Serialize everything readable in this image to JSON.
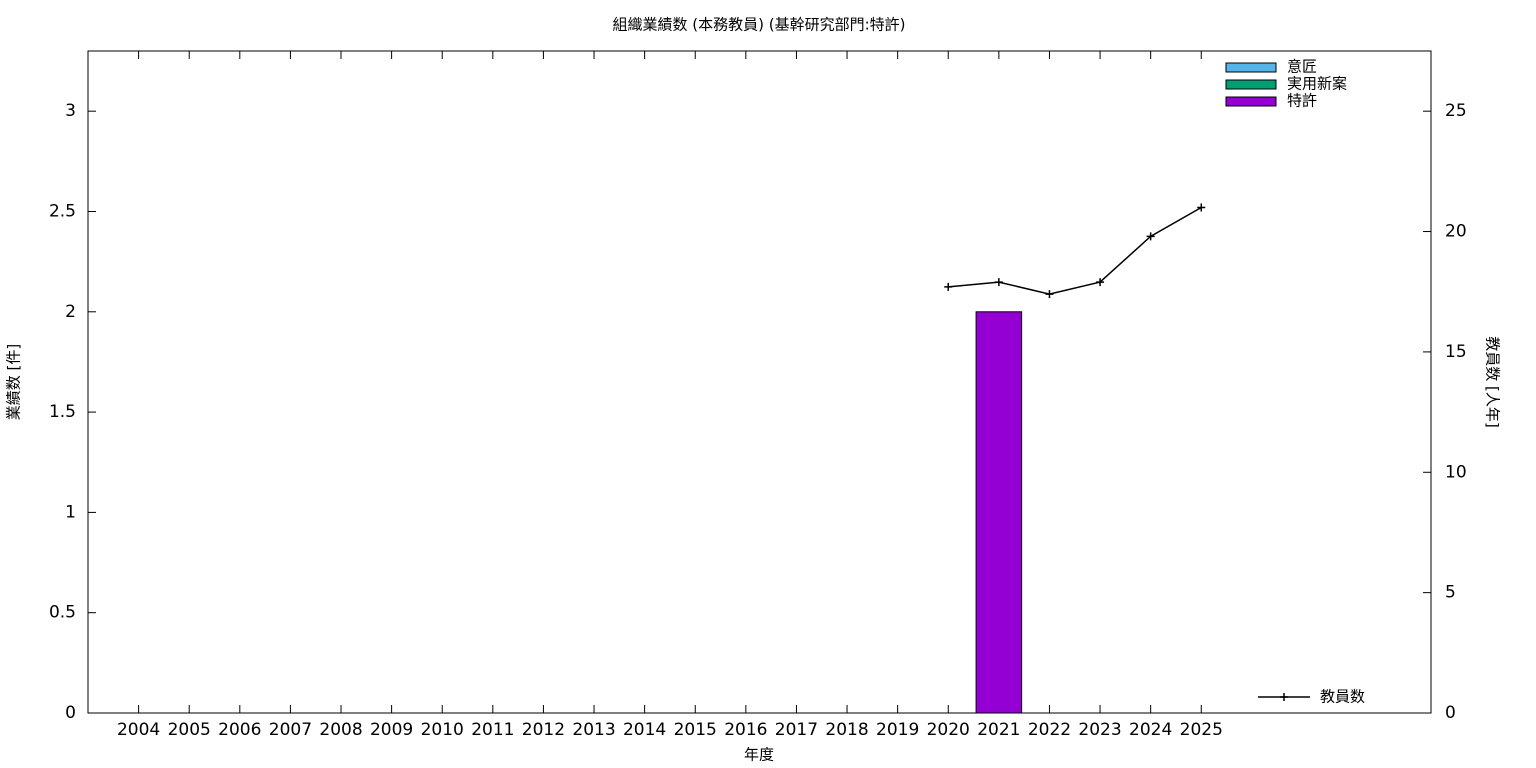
{
  "chart_data": {
    "type": "bar",
    "title": "組織業績数 (本務教員) (基幹研究部門:特許)",
    "xlabel": "年度",
    "ylabel": "業績数 [件]",
    "y2label": "教員数 [人年]",
    "categories": [
      "2004",
      "2005",
      "2006",
      "2007",
      "2008",
      "2009",
      "2010",
      "2011",
      "2012",
      "2013",
      "2014",
      "2015",
      "2016",
      "2017",
      "2018",
      "2019",
      "2020",
      "2021",
      "2022",
      "2023",
      "2024",
      "2025"
    ],
    "series": [
      {
        "name": "意匠",
        "color": "#56b4e9",
        "values": [
          0,
          0,
          0,
          0,
          0,
          0,
          0,
          0,
          0,
          0,
          0,
          0,
          0,
          0,
          0,
          0,
          0,
          0,
          0,
          0,
          0,
          0
        ]
      },
      {
        "name": "実用新案",
        "color": "#009e73",
        "values": [
          0,
          0,
          0,
          0,
          0,
          0,
          0,
          0,
          0,
          0,
          0,
          0,
          0,
          0,
          0,
          0,
          0,
          0,
          0,
          0,
          0,
          0
        ]
      },
      {
        "name": "特許",
        "color": "#9400d3",
        "values": [
          0,
          0,
          0,
          0,
          0,
          0,
          0,
          0,
          0,
          0,
          0,
          0,
          0,
          0,
          0,
          0,
          0,
          2,
          0,
          0,
          0,
          0
        ]
      },
      {
        "name": "教員数",
        "type": "line",
        "axis": "y2",
        "color": "#000000",
        "values": [
          null,
          null,
          null,
          null,
          null,
          null,
          null,
          null,
          null,
          null,
          null,
          null,
          null,
          null,
          null,
          null,
          17.7,
          17.9,
          17.4,
          17.9,
          19.8,
          21.0
        ]
      }
    ],
    "ylim": [
      0,
      3.3
    ],
    "yticks": [
      0,
      0.5,
      1,
      1.5,
      2,
      2.5,
      3
    ],
    "y2lim": [
      0,
      27.5
    ],
    "y2ticks": [
      0,
      5,
      10,
      15,
      20,
      25
    ],
    "legend": "top-right",
    "line_legend": "bottom-right"
  }
}
